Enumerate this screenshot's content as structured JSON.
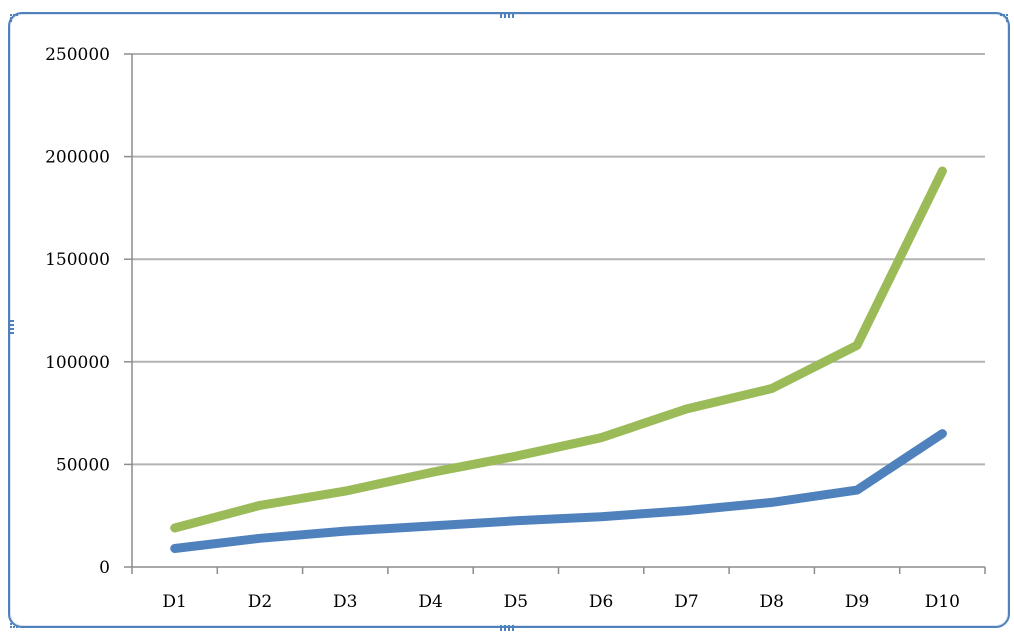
{
  "chart_data": {
    "type": "line",
    "title": "",
    "xlabel": "",
    "ylabel": "",
    "categories": [
      "D1",
      "D2",
      "D3",
      "D4",
      "D5",
      "D6",
      "D7",
      "D8",
      "D9",
      "D10"
    ],
    "ylim": [
      0,
      250000
    ],
    "yticks": [
      "0",
      "50000",
      "100000",
      "150000",
      "200000",
      "250000"
    ],
    "grid": true,
    "legend": "none",
    "series": [
      {
        "color": "#9bbb59",
        "values": [
          19000,
          30000,
          37000,
          46000,
          54000,
          63000,
          77000,
          87000,
          108000,
          193000
        ]
      },
      {
        "color": "#4f81bd",
        "values": [
          9000,
          14000,
          17500,
          20000,
          22500,
          24500,
          27500,
          31500,
          37500,
          65000
        ]
      }
    ]
  }
}
